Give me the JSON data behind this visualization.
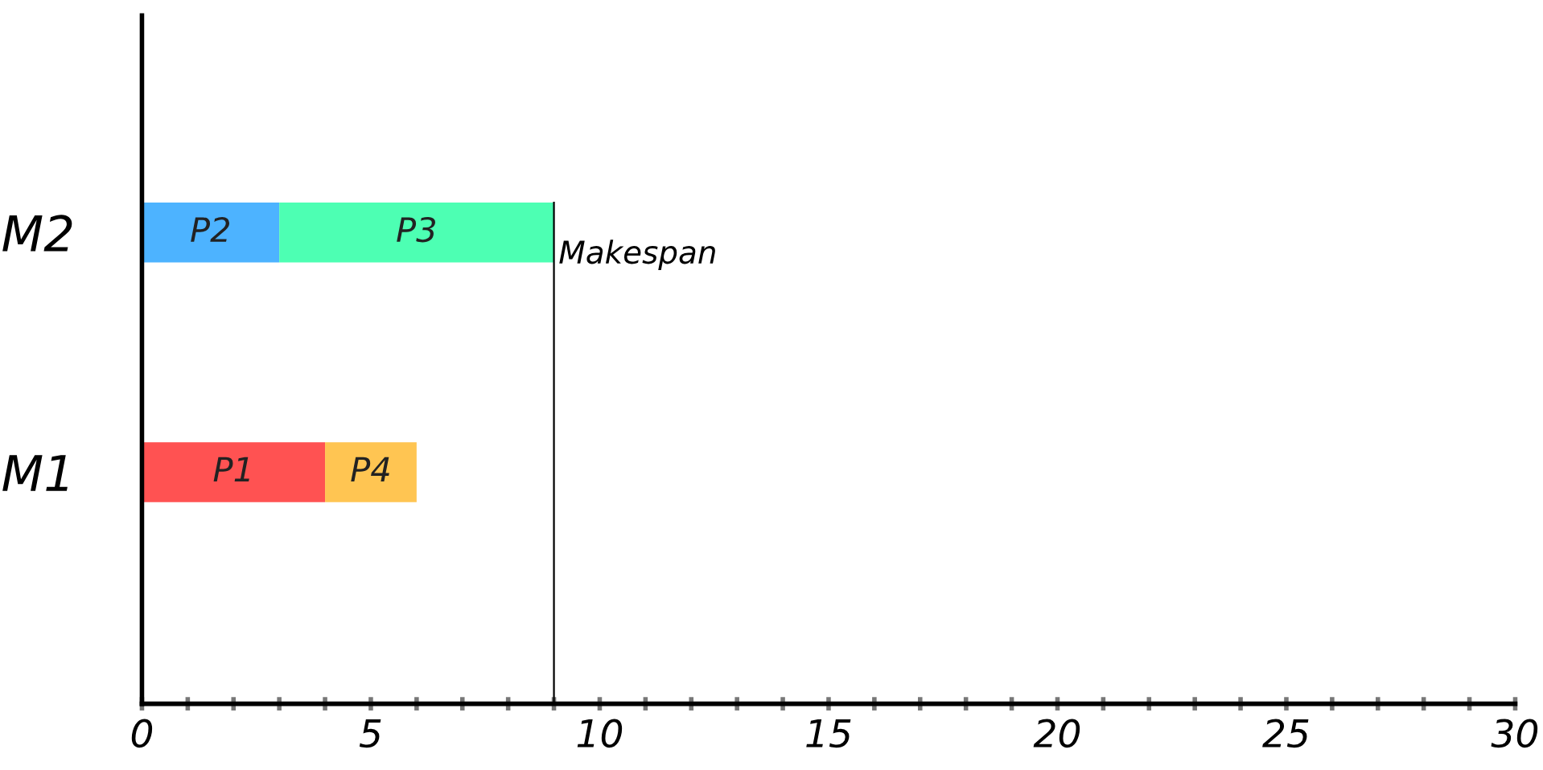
{
  "chart_data": {
    "type": "bar",
    "orientation": "horizontal",
    "stacked": true,
    "categories": [
      "M2",
      "M1"
    ],
    "series": [
      {
        "colors": [
          "#4db3ff",
          "#ff5252"
        ],
        "values": [
          3,
          4
        ],
        "value_labels": [
          "P2",
          "P1"
        ]
      },
      {
        "colors": [
          "#4dffb3",
          "#ffc552"
        ],
        "values": [
          6,
          2
        ],
        "value_labels": [
          "P3",
          "P4"
        ]
      }
    ],
    "xlim": [
      0,
      30
    ],
    "xticks": [
      0,
      {
        "value": 1,
        "label": null
      },
      {
        "value": 2,
        "label": null
      },
      {
        "value": 3,
        "label": null
      },
      {
        "value": 4,
        "label": null
      },
      5,
      {
        "value": 6,
        "label": null
      },
      {
        "value": 7,
        "label": null
      },
      {
        "value": 8,
        "label": null
      },
      {
        "value": 9,
        "label": null
      },
      10,
      {
        "value": 11,
        "label": null
      },
      {
        "value": 12,
        "label": null
      },
      {
        "value": 13,
        "label": null
      },
      {
        "value": 14,
        "label": null
      },
      15,
      {
        "value": 16,
        "label": null
      },
      {
        "value": 17,
        "label": null
      },
      {
        "value": 18,
        "label": null
      },
      {
        "value": 19,
        "label": null
      },
      20,
      {
        "value": 21,
        "label": null
      },
      {
        "value": 22,
        "label": null
      },
      {
        "value": 23,
        "label": null
      },
      {
        "value": 24,
        "label": null
      },
      25,
      {
        "value": 26,
        "label": null
      },
      {
        "value": 27,
        "label": null
      },
      {
        "value": 28,
        "label": null
      },
      {
        "value": 29,
        "label": null
      },
      30
    ],
    "ref_lines": [
      {
        "axis": "x",
        "value": 9,
        "label": "Makespan",
        "color": "#000000"
      }
    ],
    "grid": false,
    "legend": false
  }
}
